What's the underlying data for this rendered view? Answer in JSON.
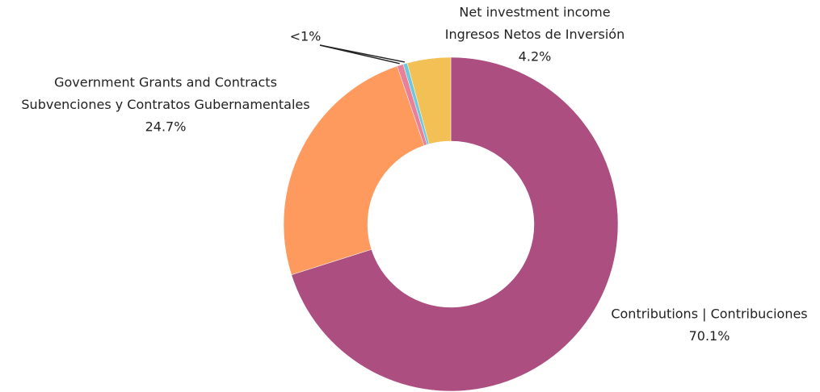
{
  "chart_data": {
    "type": "donut",
    "categories": [
      [
        "Contributions | Contribuciones"
      ],
      [
        "Government Grants and Contracts",
        "Subvenciones y Contratos Gubernamentales"
      ],
      null,
      null,
      [
        "Net investment income",
        "Ingresos Netos de Inversión"
      ]
    ],
    "values": [
      70.1,
      24.7,
      0.6,
      0.4,
      4.2
    ],
    "value_labels": [
      "70.1%",
      "24.7%",
      "<1%",
      null,
      "4.2%"
    ],
    "colors": [
      "#ad4e80",
      "#fe9a5e",
      "#e8809a",
      "#6ec8dc",
      "#f2c055"
    ]
  }
}
